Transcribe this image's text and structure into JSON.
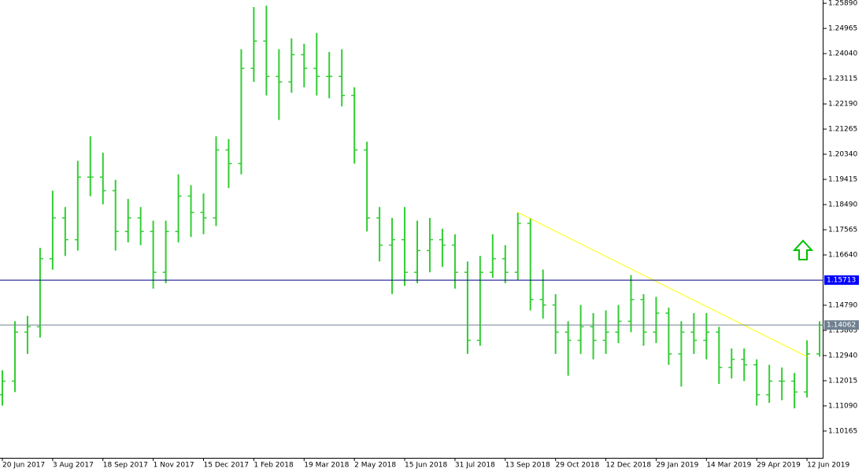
{
  "chart_data": {
    "type": "ohlc",
    "color": "#32cd32",
    "categories": [
      "20 Jun 2017",
      null,
      null,
      null,
      "3 Aug 2017",
      null,
      null,
      null,
      "18 Sep 2017",
      null,
      null,
      null,
      "1 Nov 2017",
      null,
      null,
      null,
      "15 Dec 2017",
      null,
      null,
      null,
      "1 Feb 2018",
      null,
      null,
      null,
      "19 Mar 2018",
      null,
      null,
      null,
      "2 May 2018",
      null,
      null,
      null,
      "15 Jun 2018",
      null,
      null,
      null,
      "31 Jul 2018",
      null,
      null,
      null,
      "13 Sep 2018",
      null,
      null,
      null,
      "29 Oct 2018",
      null,
      null,
      null,
      "12 Dec 2018",
      null,
      null,
      null,
      "29 Jan 2019",
      null,
      null,
      null,
      "14 Mar 2019",
      null,
      null,
      null,
      "29 Apr 2019",
      null,
      null,
      null,
      "12 Jun 2019",
      null
    ],
    "open": [
      1.115,
      1.12,
      1.138,
      1.14,
      1.165,
      1.18,
      1.172,
      1.195,
      1.195,
      1.19,
      1.175,
      1.18,
      1.175,
      1.16,
      1.175,
      1.188,
      1.182,
      1.18,
      1.205,
      1.2,
      1.235,
      1.245,
      1.232,
      1.23,
      1.24,
      1.235,
      1.232,
      1.232,
      1.225,
      1.205,
      1.18,
      1.17,
      1.172,
      1.16,
      1.168,
      1.172,
      1.17,
      1.16,
      1.135,
      1.16,
      1.165,
      1.16,
      1.178,
      1.15,
      1.148,
      1.138,
      1.135,
      1.14,
      1.135,
      1.138,
      1.142,
      1.15,
      1.138,
      1.145,
      1.13,
      1.138,
      1.135,
      1.138,
      1.125,
      1.128,
      1.126,
      1.115,
      1.12,
      1.12,
      1.116,
      1.13
    ],
    "high": [
      1.124,
      1.142,
      1.144,
      1.169,
      1.19,
      1.184,
      1.201,
      1.21,
      1.204,
      1.194,
      1.187,
      1.184,
      1.179,
      1.179,
      1.196,
      1.192,
      1.189,
      1.21,
      1.209,
      1.242,
      1.2575,
      1.258,
      1.242,
      1.246,
      1.244,
      1.248,
      1.241,
      1.242,
      1.228,
      1.208,
      1.184,
      1.18,
      1.184,
      1.179,
      1.18,
      1.176,
      1.174,
      1.164,
      1.166,
      1.174,
      1.17,
      1.182,
      1.18,
      1.161,
      1.152,
      1.142,
      1.148,
      1.145,
      1.146,
      1.148,
      1.159,
      1.152,
      1.151,
      1.147,
      1.142,
      1.145,
      1.145,
      1.14,
      1.132,
      1.132,
      1.128,
      1.126,
      1.125,
      1.123,
      1.135,
      1.142
    ],
    "low": [
      1.111,
      1.116,
      1.13,
      1.136,
      1.161,
      1.166,
      1.168,
      1.188,
      1.185,
      1.168,
      1.171,
      1.17,
      1.154,
      1.156,
      1.171,
      1.173,
      1.174,
      1.177,
      1.191,
      1.196,
      1.23,
      1.225,
      1.216,
      1.226,
      1.228,
      1.225,
      1.224,
      1.221,
      1.2,
      1.175,
      1.164,
      1.152,
      1.155,
      1.156,
      1.16,
      1.162,
      1.154,
      1.13,
      1.133,
      1.158,
      1.156,
      1.157,
      1.146,
      1.143,
      1.13,
      1.122,
      1.13,
      1.128,
      1.13,
      1.134,
      1.138,
      1.133,
      1.134,
      1.126,
      1.118,
      1.13,
      1.128,
      1.119,
      1.121,
      1.12,
      1.111,
      1.112,
      1.113,
      1.11,
      1.114,
      1.129
    ],
    "close": [
      1.12,
      1.138,
      1.14,
      1.165,
      1.18,
      1.172,
      1.195,
      1.195,
      1.19,
      1.175,
      1.18,
      1.175,
      1.16,
      1.175,
      1.188,
      1.182,
      1.18,
      1.205,
      1.2,
      1.235,
      1.245,
      1.232,
      1.23,
      1.24,
      1.235,
      1.232,
      1.232,
      1.225,
      1.205,
      1.18,
      1.17,
      1.172,
      1.16,
      1.168,
      1.172,
      1.17,
      1.16,
      1.135,
      1.16,
      1.165,
      1.16,
      1.178,
      1.15,
      1.148,
      1.138,
      1.135,
      1.14,
      1.135,
      1.138,
      1.142,
      1.15,
      1.138,
      1.145,
      1.13,
      1.138,
      1.135,
      1.138,
      1.125,
      1.128,
      1.126,
      1.115,
      1.12,
      1.12,
      1.116,
      1.13,
      1.1406
    ],
    "ylim": [
      1.0918,
      1.2601
    ],
    "yticks": [
      {
        "value": 1.2589,
        "label": "1.25890"
      },
      {
        "value": 1.24965,
        "label": "1.24965"
      },
      {
        "value": 1.2404,
        "label": "1.24040"
      },
      {
        "value": 1.23115,
        "label": "1.23115"
      },
      {
        "value": 1.2219,
        "label": "1.22190"
      },
      {
        "value": 1.21265,
        "label": "1.21265"
      },
      {
        "value": 1.2034,
        "label": "1.20340"
      },
      {
        "value": 1.19415,
        "label": "1.19415"
      },
      {
        "value": 1.1849,
        "label": "1.18490"
      },
      {
        "value": 1.17565,
        "label": "1.17565"
      },
      {
        "value": 1.1664,
        "label": "1.16640"
      },
      {
        "value": 1.1479,
        "label": "1.14790"
      },
      {
        "value": 1.13865,
        "label": "1.13865"
      },
      {
        "value": 1.1294,
        "label": "1.12940"
      },
      {
        "value": 1.12015,
        "label": "1.12015"
      },
      {
        "value": 1.1109,
        "label": "1.11090"
      },
      {
        "value": 1.10165,
        "label": "1.10165"
      }
    ],
    "levels": [
      {
        "value": 1.15713,
        "label": "1.15713",
        "color": "#000080",
        "label_color": "#0000ff"
      },
      {
        "value": 1.14062,
        "label": "1.14062",
        "color": "#708090",
        "label_color": "#708090"
      }
    ],
    "trendline": {
      "x": [
        41,
        64
      ],
      "y": [
        1.182,
        1.129
      ],
      "color": "#ffff00"
    }
  }
}
